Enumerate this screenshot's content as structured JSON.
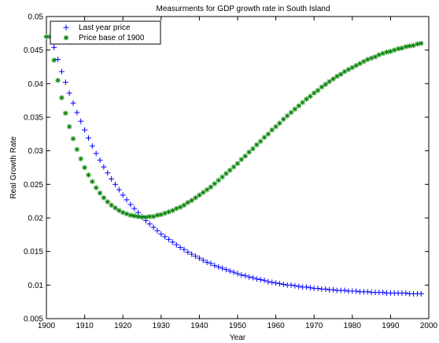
{
  "chart_data": {
    "type": "scatter",
    "title": "Measurments for GDP growth rate in South Island",
    "xlabel": "Year",
    "ylabel": "Real Growth Rate",
    "xlim": [
      1900,
      2000
    ],
    "ylim": [
      0.005,
      0.05
    ],
    "xticks": [
      1900,
      1910,
      1920,
      1930,
      1940,
      1950,
      1960,
      1970,
      1980,
      1990,
      2000
    ],
    "xtick_labels": [
      "1900",
      "1910",
      "1920",
      "1930",
      "1940",
      "1950",
      "1960",
      "1970",
      "1980",
      "1990",
      "2000"
    ],
    "yticks": [
      0.005,
      0.01,
      0.015,
      0.02,
      0.025,
      0.03,
      0.035,
      0.04,
      0.045,
      0.05
    ],
    "ytick_labels": [
      "0.005",
      "0.01",
      "0.015",
      "0.02",
      "0.025",
      "0.03",
      "0.035",
      "0.04",
      "0.045",
      "0.05"
    ],
    "grid": false,
    "legend_position": "top-left",
    "x": [
      1900,
      1901,
      1902,
      1903,
      1904,
      1905,
      1906,
      1907,
      1908,
      1909,
      1910,
      1911,
      1912,
      1913,
      1914,
      1915,
      1916,
      1917,
      1918,
      1919,
      1920,
      1921,
      1922,
      1923,
      1924,
      1925,
      1926,
      1927,
      1928,
      1929,
      1930,
      1931,
      1932,
      1933,
      1934,
      1935,
      1936,
      1937,
      1938,
      1939,
      1940,
      1941,
      1942,
      1943,
      1944,
      1945,
      1946,
      1947,
      1948,
      1949,
      1950,
      1951,
      1952,
      1953,
      1954,
      1955,
      1956,
      1957,
      1958,
      1959,
      1960,
      1961,
      1962,
      1963,
      1964,
      1965,
      1966,
      1967,
      1968,
      1969,
      1970,
      1971,
      1972,
      1973,
      1974,
      1975,
      1976,
      1977,
      1978,
      1979,
      1980,
      1981,
      1982,
      1983,
      1984,
      1985,
      1986,
      1987,
      1988,
      1989,
      1990,
      1991,
      1992,
      1993,
      1994,
      1995,
      1996,
      1997,
      1998
    ],
    "series": [
      {
        "name": "Last year price",
        "marker": "plus",
        "color": "#0000ff",
        "values": [
          0.047,
          0.047,
          0.0454,
          0.0436,
          0.0418,
          0.0402,
          0.0386,
          0.0371,
          0.0357,
          0.0344,
          0.0331,
          0.0319,
          0.0307,
          0.0296,
          0.0286,
          0.0276,
          0.0267,
          0.0258,
          0.025,
          0.0242,
          0.0234,
          0.0227,
          0.022,
          0.0214,
          0.0208,
          0.0202,
          0.0196,
          0.0191,
          0.0186,
          0.0181,
          0.0176,
          0.0172,
          0.0168,
          0.0164,
          0.016,
          0.0156,
          0.0153,
          0.0149,
          0.0146,
          0.0143,
          0.014,
          0.0137,
          0.0134,
          0.0132,
          0.0129,
          0.0127,
          0.0125,
          0.0123,
          0.0121,
          0.0119,
          0.0117,
          0.0115,
          0.0114,
          0.0112,
          0.0111,
          0.0109,
          0.0108,
          0.0107,
          0.0105,
          0.0104,
          0.0103,
          0.0102,
          0.0101,
          0.01,
          0.01,
          0.0099,
          0.0098,
          0.0097,
          0.0097,
          0.0096,
          0.0095,
          0.0095,
          0.0094,
          0.0094,
          0.0093,
          0.0093,
          0.0092,
          0.0092,
          0.0092,
          0.0091,
          0.0091,
          0.0091,
          0.009,
          0.009,
          0.009,
          0.0089,
          0.0089,
          0.0089,
          0.0089,
          0.0088,
          0.0088,
          0.0088,
          0.0088,
          0.0088,
          0.0088,
          0.0087,
          0.0087,
          0.0087,
          0.0087
        ]
      },
      {
        "name": "Price base of 1900",
        "marker": "star",
        "color": "#008000",
        "values": [
          0.047,
          0.047,
          0.0435,
          0.0405,
          0.0379,
          0.0356,
          0.0336,
          0.0318,
          0.0302,
          0.0288,
          0.0275,
          0.0264,
          0.0254,
          0.0245,
          0.0237,
          0.023,
          0.0224,
          0.0219,
          0.0215,
          0.0211,
          0.0208,
          0.0206,
          0.0204,
          0.0203,
          0.0202,
          0.0201,
          0.0201,
          0.0202,
          0.0202,
          0.0204,
          0.0205,
          0.0207,
          0.0209,
          0.0211,
          0.0214,
          0.0216,
          0.0219,
          0.0223,
          0.0226,
          0.023,
          0.0234,
          0.0238,
          0.0242,
          0.0246,
          0.0251,
          0.0256,
          0.0261,
          0.0266,
          0.0271,
          0.0276,
          0.0281,
          0.0287,
          0.0292,
          0.0298,
          0.0303,
          0.0309,
          0.0314,
          0.032,
          0.0325,
          0.0331,
          0.0336,
          0.0341,
          0.0347,
          0.0352,
          0.0357,
          0.0362,
          0.0367,
          0.0372,
          0.0377,
          0.0381,
          0.0386,
          0.039,
          0.0395,
          0.0399,
          0.0403,
          0.0407,
          0.0411,
          0.0414,
          0.0418,
          0.0421,
          0.0424,
          0.0427,
          0.043,
          0.0433,
          0.0436,
          0.0438,
          0.044,
          0.0443,
          0.0445,
          0.0447,
          0.0448,
          0.045,
          0.0452,
          0.0453,
          0.0455,
          0.0456,
          0.0457,
          0.0459,
          0.046
        ]
      }
    ]
  }
}
